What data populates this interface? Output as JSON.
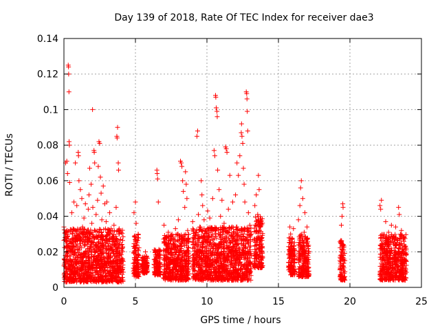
{
  "chart_data": {
    "type": "scatter",
    "title": "Day 139 of 2018, Rate Of TEC Index for receiver dae3",
    "xlabel": "GPS time / hours",
    "ylabel": "ROTI / TECUs",
    "xlim": [
      0,
      25
    ],
    "ylim": [
      0,
      0.14
    ],
    "x_ticks": [
      0,
      5,
      10,
      15,
      20,
      25
    ],
    "y_ticks": [
      0,
      0.02,
      0.04,
      0.06,
      0.08,
      0.1,
      0.12,
      0.14
    ],
    "x_tick_labels": [
      "0",
      "5",
      "10",
      "15",
      "20",
      "25"
    ],
    "y_tick_labels": [
      "0",
      "0.02",
      "0.04",
      "0.06",
      "0.08",
      "0.1",
      "0.12",
      "0.14"
    ],
    "grid": true,
    "marker": "plus",
    "color": "#ff0000",
    "series": [
      {
        "points": [
          [
            0.0,
            0.034
          ],
          [
            0.05,
            0.012
          ],
          [
            0.1,
            0.018
          ],
          [
            0.12,
            0.07
          ],
          [
            0.15,
            0.009
          ],
          [
            0.2,
            0.071
          ],
          [
            0.22,
            0.025
          ],
          [
            0.25,
            0.064
          ],
          [
            0.28,
            0.005
          ],
          [
            0.3,
            0.125
          ],
          [
            0.32,
            0.124
          ],
          [
            0.33,
            0.12
          ],
          [
            0.35,
            0.11
          ],
          [
            0.36,
            0.082
          ],
          [
            0.38,
            0.08
          ],
          [
            0.4,
            0.059
          ],
          [
            0.45,
            0.015
          ],
          [
            0.5,
            0.022
          ],
          [
            0.55,
            0.042
          ],
          [
            0.6,
            0.03
          ],
          [
            0.65,
            0.008
          ],
          [
            0.7,
            0.048
          ],
          [
            0.75,
            0.019
          ],
          [
            0.8,
            0.07
          ],
          [
            0.85,
            0.014
          ],
          [
            0.9,
            0.046
          ],
          [
            0.95,
            0.029
          ],
          [
            1.0,
            0.076
          ],
          [
            1.02,
            0.074
          ],
          [
            1.05,
            0.06
          ],
          [
            1.1,
            0.021
          ],
          [
            1.15,
            0.055
          ],
          [
            1.2,
            0.01
          ],
          [
            1.25,
            0.05
          ],
          [
            1.3,
            0.034
          ],
          [
            1.35,
            0.012
          ],
          [
            1.4,
            0.039
          ],
          [
            1.45,
            0.026
          ],
          [
            1.5,
            0.047
          ],
          [
            1.55,
            0.017
          ],
          [
            1.6,
            0.031
          ],
          [
            1.65,
            0.01
          ],
          [
            1.7,
            0.044
          ],
          [
            1.75,
            0.052
          ],
          [
            1.8,
            0.067
          ],
          [
            1.85,
            0.023
          ],
          [
            1.9,
            0.058
          ],
          [
            1.95,
            0.036
          ],
          [
            2.0,
            0.1
          ],
          [
            2.02,
            0.045
          ],
          [
            2.05,
            0.014
          ],
          [
            2.1,
            0.077
          ],
          [
            2.12,
            0.076
          ],
          [
            2.15,
            0.07
          ],
          [
            2.2,
            0.028
          ],
          [
            2.25,
            0.041
          ],
          [
            2.3,
            0.011
          ],
          [
            2.35,
            0.049
          ],
          [
            2.4,
            0.068
          ],
          [
            2.45,
            0.082
          ],
          [
            2.5,
            0.081
          ],
          [
            2.55,
            0.062
          ],
          [
            2.6,
            0.053
          ],
          [
            2.65,
            0.038
          ],
          [
            2.7,
            0.02
          ],
          [
            2.75,
            0.057
          ],
          [
            2.8,
            0.013
          ],
          [
            2.85,
            0.047
          ],
          [
            2.9,
            0.025
          ],
          [
            2.95,
            0.037
          ],
          [
            3.0,
            0.048
          ],
          [
            3.05,
            0.017
          ],
          [
            3.1,
            0.031
          ],
          [
            3.15,
            0.009
          ],
          [
            3.2,
            0.042
          ],
          [
            3.25,
            0.022
          ],
          [
            3.3,
            0.033
          ],
          [
            3.35,
            0.012
          ],
          [
            3.4,
            0.028
          ],
          [
            3.45,
            0.019
          ],
          [
            3.5,
            0.035
          ],
          [
            3.55,
            0.026
          ],
          [
            3.6,
            0.015
          ],
          [
            3.65,
            0.045
          ],
          [
            3.7,
            0.085
          ],
          [
            3.72,
            0.084
          ],
          [
            3.75,
            0.09
          ],
          [
            3.8,
            0.07
          ],
          [
            3.82,
            0.066
          ],
          [
            3.85,
            0.03
          ],
          [
            3.9,
            0.018
          ],
          [
            3.95,
            0.027
          ],
          [
            4.0,
            0.01
          ],
          [
            4.05,
            0.024
          ],
          [
            4.1,
            0.016
          ],
          [
            4.9,
            0.042
          ],
          [
            4.95,
            0.022
          ],
          [
            5.0,
            0.048
          ],
          [
            5.05,
            0.036
          ],
          [
            5.1,
            0.012
          ],
          [
            5.15,
            0.028
          ],
          [
            5.2,
            0.009
          ],
          [
            5.25,
            0.018
          ],
          [
            5.5,
            0.017
          ],
          [
            5.6,
            0.012
          ],
          [
            5.7,
            0.02
          ],
          [
            5.8,
            0.014
          ],
          [
            6.3,
            0.013
          ],
          [
            6.4,
            0.021
          ],
          [
            6.5,
            0.066
          ],
          [
            6.52,
            0.064
          ],
          [
            6.55,
            0.061
          ],
          [
            6.6,
            0.048
          ],
          [
            6.65,
            0.018
          ],
          [
            6.7,
            0.009
          ],
          [
            7.0,
            0.035
          ],
          [
            7.1,
            0.025
          ],
          [
            7.2,
            0.012
          ],
          [
            7.3,
            0.031
          ],
          [
            7.4,
            0.019
          ],
          [
            7.5,
            0.027
          ],
          [
            7.6,
            0.014
          ],
          [
            7.7,
            0.022
          ],
          [
            7.8,
            0.033
          ],
          [
            7.9,
            0.01
          ],
          [
            8.0,
            0.038
          ],
          [
            8.05,
            0.02
          ],
          [
            8.1,
            0.029
          ],
          [
            8.15,
            0.071
          ],
          [
            8.2,
            0.07
          ],
          [
            8.25,
            0.068
          ],
          [
            8.3,
            0.06
          ],
          [
            8.35,
            0.054
          ],
          [
            8.4,
            0.015
          ],
          [
            8.45,
            0.045
          ],
          [
            8.5,
            0.065
          ],
          [
            8.55,
            0.058
          ],
          [
            8.6,
            0.05
          ],
          [
            8.65,
            0.032
          ],
          [
            8.7,
            0.017
          ],
          [
            8.75,
            0.026
          ],
          [
            9.0,
            0.037
          ],
          [
            9.1,
            0.016
          ],
          [
            9.2,
            0.029
          ],
          [
            9.3,
            0.085
          ],
          [
            9.35,
            0.088
          ],
          [
            9.4,
            0.041
          ],
          [
            9.45,
            0.012
          ],
          [
            9.5,
            0.034
          ],
          [
            9.55,
            0.024
          ],
          [
            9.6,
            0.06
          ],
          [
            9.65,
            0.052
          ],
          [
            9.7,
            0.046
          ],
          [
            9.75,
            0.019
          ],
          [
            9.8,
            0.038
          ],
          [
            9.85,
            0.027
          ],
          [
            9.9,
            0.013
          ],
          [
            9.95,
            0.032
          ],
          [
            10.0,
            0.022
          ],
          [
            10.05,
            0.043
          ],
          [
            10.1,
            0.015
          ],
          [
            10.2,
            0.039
          ],
          [
            10.3,
            0.024
          ],
          [
            10.4,
            0.05
          ],
          [
            10.5,
            0.077
          ],
          [
            10.55,
            0.074
          ],
          [
            10.6,
            0.108
          ],
          [
            10.62,
            0.107
          ],
          [
            10.65,
            0.101
          ],
          [
            10.7,
            0.099
          ],
          [
            10.72,
            0.096
          ],
          [
            10.75,
            0.066
          ],
          [
            10.8,
            0.03
          ],
          [
            10.85,
            0.055
          ],
          [
            10.9,
            0.018
          ],
          [
            10.95,
            0.04
          ],
          [
            11.0,
            0.028
          ],
          [
            11.05,
            0.049
          ],
          [
            11.1,
            0.011
          ],
          [
            11.2,
            0.036
          ],
          [
            11.3,
            0.079
          ],
          [
            11.35,
            0.078
          ],
          [
            11.4,
            0.076
          ],
          [
            11.45,
            0.022
          ],
          [
            11.5,
            0.044
          ],
          [
            11.6,
            0.063
          ],
          [
            11.7,
            0.033
          ],
          [
            11.8,
            0.048
          ],
          [
            11.9,
            0.019
          ],
          [
            12.0,
            0.052
          ],
          [
            12.1,
            0.07
          ],
          [
            12.2,
            0.063
          ],
          [
            12.3,
            0.074
          ],
          [
            12.4,
            0.087
          ],
          [
            12.42,
            0.092
          ],
          [
            12.45,
            0.085
          ],
          [
            12.5,
            0.081
          ],
          [
            12.55,
            0.067
          ],
          [
            12.6,
            0.058
          ],
          [
            12.65,
            0.048
          ],
          [
            12.7,
            0.027
          ],
          [
            12.75,
            0.11
          ],
          [
            12.78,
            0.109
          ],
          [
            12.8,
            0.106
          ],
          [
            12.82,
            0.099
          ],
          [
            12.85,
            0.088
          ],
          [
            12.9,
            0.042
          ],
          [
            12.95,
            0.02
          ],
          [
            13.0,
            0.035
          ],
          [
            13.05,
            0.013
          ],
          [
            13.1,
            0.03
          ],
          [
            13.3,
            0.027
          ],
          [
            13.35,
            0.046
          ],
          [
            13.4,
            0.018
          ],
          [
            13.45,
            0.052
          ],
          [
            13.5,
            0.032
          ],
          [
            13.55,
            0.041
          ],
          [
            13.6,
            0.063
          ],
          [
            13.65,
            0.055
          ],
          [
            13.7,
            0.022
          ],
          [
            13.75,
            0.037
          ],
          [
            13.8,
            0.014
          ],
          [
            13.85,
            0.028
          ],
          [
            15.7,
            0.012
          ],
          [
            15.8,
            0.034
          ],
          [
            15.85,
            0.03
          ],
          [
            15.9,
            0.022
          ],
          [
            15.95,
            0.027
          ],
          [
            16.0,
            0.016
          ],
          [
            16.05,
            0.033
          ],
          [
            16.1,
            0.01
          ],
          [
            16.4,
            0.038
          ],
          [
            16.5,
            0.046
          ],
          [
            16.55,
            0.056
          ],
          [
            16.6,
            0.06
          ],
          [
            16.65,
            0.029
          ],
          [
            16.7,
            0.05
          ],
          [
            16.75,
            0.02
          ],
          [
            16.8,
            0.031
          ],
          [
            16.85,
            0.042
          ],
          [
            16.9,
            0.012
          ],
          [
            16.95,
            0.025
          ],
          [
            17.0,
            0.034
          ],
          [
            17.05,
            0.018
          ],
          [
            17.1,
            0.009
          ],
          [
            19.3,
            0.015
          ],
          [
            19.35,
            0.025
          ],
          [
            19.4,
            0.035
          ],
          [
            19.45,
            0.04
          ],
          [
            19.5,
            0.047
          ],
          [
            19.52,
            0.045
          ],
          [
            19.55,
            0.018
          ],
          [
            19.6,
            0.008
          ],
          [
            22.1,
            0.046
          ],
          [
            22.15,
            0.044
          ],
          [
            22.2,
            0.049
          ],
          [
            22.25,
            0.028
          ],
          [
            22.3,
            0.012
          ],
          [
            22.4,
            0.022
          ],
          [
            22.5,
            0.037
          ],
          [
            22.6,
            0.014
          ],
          [
            22.7,
            0.031
          ],
          [
            22.8,
            0.02
          ],
          [
            22.9,
            0.035
          ],
          [
            23.0,
            0.011
          ],
          [
            23.1,
            0.027
          ],
          [
            23.2,
            0.034
          ],
          [
            23.3,
            0.016
          ],
          [
            23.4,
            0.045
          ],
          [
            23.45,
            0.041
          ],
          [
            23.5,
            0.024
          ],
          [
            23.6,
            0.032
          ],
          [
            23.7,
            0.013
          ],
          [
            23.8,
            0.028
          ],
          [
            23.85,
            0.019
          ],
          [
            23.9,
            0.01
          ]
        ]
      }
    ],
    "clusters": [
      {
        "x": [
          0.0,
          4.15
        ],
        "y": [
          0.003,
          0.033
        ]
      },
      {
        "x": [
          4.85,
          5.25
        ],
        "y": [
          0.006,
          0.03
        ]
      },
      {
        "x": [
          5.45,
          5.85
        ],
        "y": [
          0.008,
          0.018
        ]
      },
      {
        "x": [
          6.3,
          6.75
        ],
        "y": [
          0.007,
          0.022
        ]
      },
      {
        "x": [
          6.95,
          8.75
        ],
        "y": [
          0.004,
          0.03
        ]
      },
      {
        "x": [
          9.0,
          13.1
        ],
        "y": [
          0.004,
          0.034
        ]
      },
      {
        "x": [
          13.3,
          13.9
        ],
        "y": [
          0.011,
          0.04
        ]
      },
      {
        "x": [
          15.7,
          16.15
        ],
        "y": [
          0.007,
          0.028
        ]
      },
      {
        "x": [
          16.4,
          17.15
        ],
        "y": [
          0.006,
          0.03
        ]
      },
      {
        "x": [
          19.3,
          19.65
        ],
        "y": [
          0.004,
          0.027
        ]
      },
      {
        "x": [
          22.1,
          23.95
        ],
        "y": [
          0.004,
          0.03
        ]
      }
    ]
  }
}
